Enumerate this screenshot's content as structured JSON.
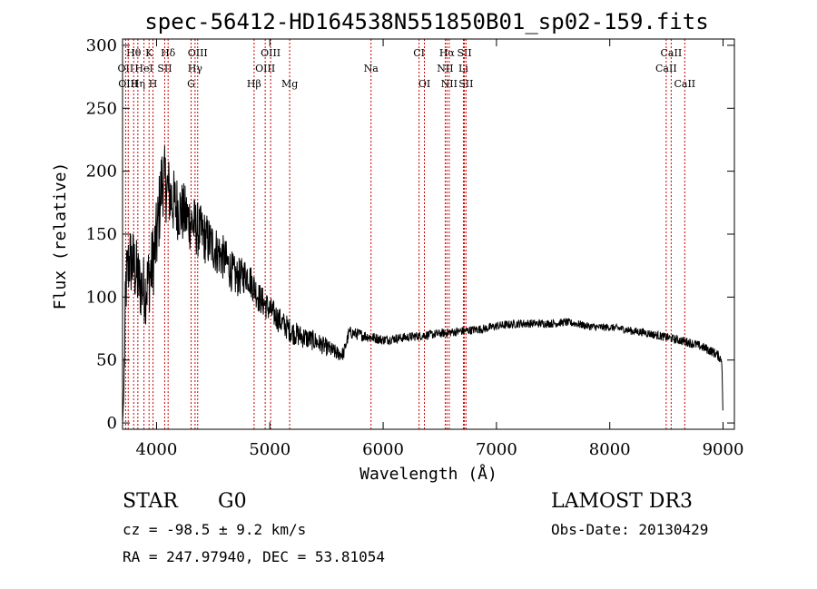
{
  "chart_data": {
    "type": "line",
    "title": "spec-56412-HD164538N551850B01_sp02-159.fits",
    "xlabel": "Wavelength (Å)",
    "ylabel": "Flux (relative)",
    "xlim": [
      3700,
      9100
    ],
    "ylim": [
      -5,
      305
    ],
    "xticks": [
      4000,
      5000,
      6000,
      7000,
      8000,
      9000
    ],
    "yticks": [
      0,
      50,
      100,
      150,
      200,
      250,
      300
    ],
    "spectrum_anchors": {
      "wavelength": [
        3700,
        3710,
        3730,
        3760,
        3800,
        3850,
        3900,
        3950,
        4000,
        4050,
        4100,
        4150,
        4200,
        4300,
        4400,
        4500,
        4600,
        4700,
        4800,
        4860,
        4900,
        5000,
        5100,
        5200,
        5300,
        5400,
        5500,
        5600,
        5650,
        5700,
        5800,
        5900,
        6000,
        6100,
        6200,
        6300,
        6400,
        6500,
        6600,
        6700,
        6800,
        6900,
        7000,
        7100,
        7200,
        7300,
        7400,
        7500,
        7600,
        7700,
        7800,
        7900,
        8000,
        8100,
        8200,
        8300,
        8400,
        8500,
        8600,
        8700,
        8800,
        8900,
        8950,
        8990,
        9000
      ],
      "flux": [
        0,
        20,
        110,
        130,
        125,
        110,
        105,
        120,
        145,
        195,
        185,
        175,
        170,
        160,
        150,
        140,
        130,
        115,
        118,
        108,
        100,
        90,
        80,
        72,
        68,
        65,
        60,
        55,
        55,
        72,
        70,
        68,
        66,
        67,
        68,
        69,
        70,
        71,
        72,
        73,
        74,
        75,
        77,
        78,
        79,
        79,
        79,
        79,
        80,
        79,
        77,
        76,
        76,
        75,
        73,
        72,
        70,
        68,
        66,
        64,
        61,
        57,
        54,
        50,
        0
      ]
    },
    "noise_amplitude": {
      "wavelength": [
        3700,
        3900,
        4000,
        4200,
        4500,
        4800,
        5000,
        5300,
        5700,
        6000,
        6500,
        7000,
        8000,
        9000
      ],
      "amplitude": [
        30,
        28,
        32,
        26,
        20,
        14,
        11,
        9,
        5,
        4,
        3.5,
        3.5,
        3,
        4
      ]
    },
    "lines": [
      {
        "label": "Hθ",
        "wavelength": 3798,
        "row": 0
      },
      {
        "label": "K",
        "wavelength": 3934,
        "row": 0
      },
      {
        "label": "Hδ",
        "wavelength": 4102,
        "row": 0
      },
      {
        "label": "OIII",
        "wavelength": 4363,
        "row": 0
      },
      {
        "label": "OIII",
        "wavelength": 5007,
        "row": 0
      },
      {
        "label": "CI",
        "wavelength": 6317,
        "row": 0
      },
      {
        "label": "Hα",
        "wavelength": 6563,
        "row": 0
      },
      {
        "label": "SII",
        "wavelength": 6717,
        "row": 0
      },
      {
        "label": "CaII",
        "wavelength": 8542,
        "row": 0
      },
      {
        "label": "OII",
        "wavelength": 3727,
        "row": 1
      },
      {
        "label": "HeI",
        "wavelength": 3889,
        "row": 1
      },
      {
        "label": "SII",
        "wavelength": 4072,
        "row": 1
      },
      {
        "label": "Hγ",
        "wavelength": 4340,
        "row": 1
      },
      {
        "label": "OIII",
        "wavelength": 4959,
        "row": 1
      },
      {
        "label": "Na",
        "wavelength": 5893,
        "row": 1
      },
      {
        "label": "NII",
        "wavelength": 6548,
        "row": 1
      },
      {
        "label": "Li",
        "wavelength": 6708,
        "row": 1
      },
      {
        "label": "CaII",
        "wavelength": 8498,
        "row": 1
      },
      {
        "label": "OIII",
        "wavelength": 3750,
        "row": 2
      },
      {
        "label": "Hη",
        "wavelength": 3835,
        "row": 2
      },
      {
        "label": "H",
        "wavelength": 3969,
        "row": 2
      },
      {
        "label": "G",
        "wavelength": 4305,
        "row": 2
      },
      {
        "label": "Hβ",
        "wavelength": 4861,
        "row": 2
      },
      {
        "label": "Mg",
        "wavelength": 5175,
        "row": 2
      },
      {
        "label": "OI",
        "wavelength": 6364,
        "row": 2
      },
      {
        "label": "NII",
        "wavelength": 6583,
        "row": 2
      },
      {
        "label": "SII",
        "wavelength": 6731,
        "row": 2
      },
      {
        "label": "CaII",
        "wavelength": 8662,
        "row": 2
      }
    ],
    "colors": {
      "spectrum": "#000000",
      "lines": "#cc0000",
      "axes": "#000000"
    }
  },
  "info": {
    "star_type": "STAR",
    "subclass": "G0",
    "survey": "LAMOST DR3",
    "cz": "cz = -98.5 ± 9.2 km/s",
    "obs_date": "Obs-Date: 20130429",
    "coords": "RA = 247.97940, DEC =  53.81054"
  }
}
